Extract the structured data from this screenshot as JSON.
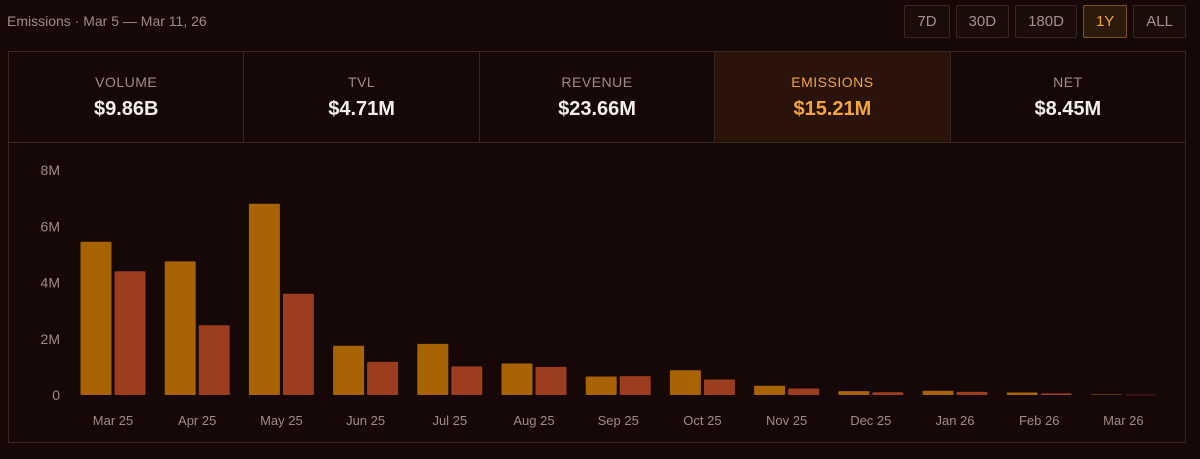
{
  "header": {
    "title": "Emissions · Mar 5 — Mar 11, 26"
  },
  "ranges": [
    {
      "label": "7D",
      "active": false
    },
    {
      "label": "30D",
      "active": false
    },
    {
      "label": "180D",
      "active": false
    },
    {
      "label": "1Y",
      "active": true
    },
    {
      "label": "ALL",
      "active": false
    }
  ],
  "stats": [
    {
      "label": "VOLUME",
      "value": "$9.86B",
      "active": false
    },
    {
      "label": "TVL",
      "value": "$4.71M",
      "active": false
    },
    {
      "label": "REVENUE",
      "value": "$23.66M",
      "active": false
    },
    {
      "label": "EMISSIONS",
      "value": "$15.21M",
      "active": true
    },
    {
      "label": "NET",
      "value": "$8.45M",
      "active": false
    }
  ],
  "colors": {
    "series1": "#a86303",
    "series2": "#9c3d20",
    "accent": "#f2a43d",
    "axis_text": "#9d8c86"
  },
  "chart_data": {
    "type": "bar",
    "categories": [
      "Mar 25",
      "Apr 25",
      "May 25",
      "Jun 25",
      "Jul 25",
      "Aug 25",
      "Sep 25",
      "Oct 25",
      "Nov 25",
      "Dec 25",
      "Jan 26",
      "Feb 26",
      "Mar 26"
    ],
    "series": [
      {
        "values": [
          5.45,
          4.75,
          6.8,
          1.75,
          1.82,
          1.12,
          0.66,
          0.88,
          0.33,
          0.14,
          0.15,
          0.09,
          0.02
        ]
      },
      {
        "values": [
          4.4,
          2.48,
          3.6,
          1.18,
          1.02,
          1.0,
          0.67,
          0.55,
          0.23,
          0.1,
          0.11,
          0.06,
          0.01
        ]
      }
    ],
    "y_ticks": [
      "0",
      "2M",
      "4M",
      "6M",
      "8M"
    ],
    "ylim": [
      0,
      8
    ],
    "grid": false,
    "legend": false
  }
}
